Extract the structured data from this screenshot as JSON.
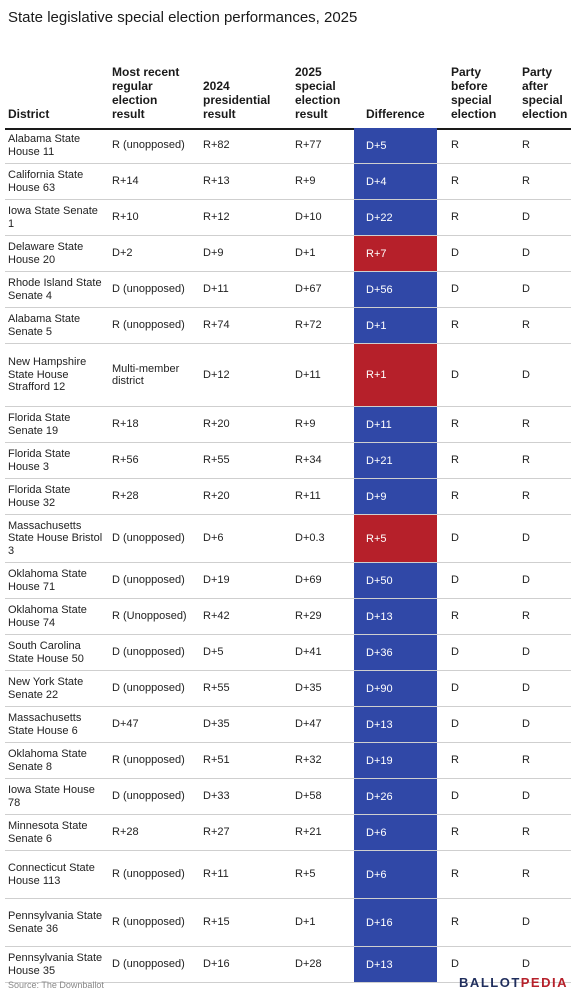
{
  "title": "State legislative special election performances, 2025",
  "headers": {
    "district": "District",
    "regular": "Most recent regular election result",
    "presidential": "2024 presidential result",
    "special": "2025 special election result",
    "difference": "Difference",
    "party_before": "Party before special election",
    "party_after": "Party after special election"
  },
  "colors": {
    "D": "#3048a7",
    "R": "#b6202a"
  },
  "rows": [
    {
      "district": "Alabama State House 11",
      "regular": "R (unopposed)",
      "presidential": "R+82",
      "special": "R+77",
      "difference": "D+5",
      "diff_party": "D",
      "before": "R",
      "after": "R"
    },
    {
      "district": "California State House 63",
      "regular": "R+14",
      "presidential": "R+13",
      "special": "R+9",
      "difference": "D+4",
      "diff_party": "D",
      "before": "R",
      "after": "R"
    },
    {
      "district": "Iowa State Senate 1",
      "regular": "R+10",
      "presidential": "R+12",
      "special": "D+10",
      "difference": "D+22",
      "diff_party": "D",
      "before": "R",
      "after": "D"
    },
    {
      "district": "Delaware State House 20",
      "regular": "D+2",
      "presidential": "D+9",
      "special": "D+1",
      "difference": "R+7",
      "diff_party": "R",
      "before": "D",
      "after": "D"
    },
    {
      "district": "Rhode Island State Senate 4",
      "regular": "D (unopposed)",
      "presidential": "D+11",
      "special": "D+67",
      "difference": "D+56",
      "diff_party": "D",
      "before": "D",
      "after": "D"
    },
    {
      "district": "Alabama State Senate 5",
      "regular": "R (unopposed)",
      "presidential": "R+74",
      "special": "R+72",
      "difference": "D+1",
      "diff_party": "D",
      "before": "R",
      "after": "R"
    },
    {
      "district": "New Hampshire State House Strafford 12",
      "regular": "Multi-member district",
      "presidential": "D+12",
      "special": "D+11",
      "difference": "R+1",
      "diff_party": "R",
      "before": "D",
      "after": "D"
    },
    {
      "district": "Florida State Senate 19",
      "regular": "R+18",
      "presidential": "R+20",
      "special": "R+9",
      "difference": "D+11",
      "diff_party": "D",
      "before": "R",
      "after": "R"
    },
    {
      "district": "Florida State House 3",
      "regular": "R+56",
      "presidential": "R+55",
      "special": "R+34",
      "difference": "D+21",
      "diff_party": "D",
      "before": "R",
      "after": "R"
    },
    {
      "district": "Florida State House 32",
      "regular": "R+28",
      "presidential": "R+20",
      "special": "R+11",
      "difference": "D+9",
      "diff_party": "D",
      "before": "R",
      "after": "R"
    },
    {
      "district": "Massachusetts State House Bristol 3",
      "regular": "D (unopposed)",
      "presidential": "D+6",
      "special": "D+0.3",
      "difference": "R+5",
      "diff_party": "R",
      "before": "D",
      "after": "D"
    },
    {
      "district": "Oklahoma State House 71",
      "regular": "D (unopposed)",
      "presidential": "D+19",
      "special": "D+69",
      "difference": "D+50",
      "diff_party": "D",
      "before": "D",
      "after": "D"
    },
    {
      "district": "Oklahoma State House 74",
      "regular": "R (Unopposed)",
      "presidential": "R+42",
      "special": "R+29",
      "difference": "D+13",
      "diff_party": "D",
      "before": "R",
      "after": "R"
    },
    {
      "district": "South Carolina State House 50",
      "regular": "D (unopposed)",
      "presidential": "D+5",
      "special": "D+41",
      "difference": "D+36",
      "diff_party": "D",
      "before": "D",
      "after": "D"
    },
    {
      "district": "New York State Senate 22",
      "regular": "D (unopposed)",
      "presidential": "R+55",
      "special": "D+35",
      "difference": "D+90",
      "diff_party": "D",
      "before": "D",
      "after": "D"
    },
    {
      "district": "Massachusetts State House 6",
      "regular": "D+47",
      "presidential": "D+35",
      "special": "D+47",
      "difference": "D+13",
      "diff_party": "D",
      "before": "D",
      "after": "D"
    },
    {
      "district": "Oklahoma State Senate 8",
      "regular": "R (unopposed)",
      "presidential": "R+51",
      "special": "R+32",
      "difference": "D+19",
      "diff_party": "D",
      "before": "R",
      "after": "R"
    },
    {
      "district": "Iowa State House 78",
      "regular": "D (unopposed)",
      "presidential": "D+33",
      "special": "D+58",
      "difference": "D+26",
      "diff_party": "D",
      "before": "D",
      "after": "D"
    },
    {
      "district": "Minnesota State Senate 6",
      "regular": "R+28",
      "presidential": "R+27",
      "special": "R+21",
      "difference": "D+6",
      "diff_party": "D",
      "before": "R",
      "after": "R"
    },
    {
      "district": "Connecticut State House 113",
      "regular": "R (unopposed)",
      "presidential": "R+11",
      "special": "R+5",
      "difference": "D+6",
      "diff_party": "D",
      "before": "R",
      "after": "R"
    },
    {
      "district": "Pennsylvania State Senate 36",
      "regular": "R (unopposed)",
      "presidential": "R+15",
      "special": "D+1",
      "difference": "D+16",
      "diff_party": "D",
      "before": "R",
      "after": "D"
    },
    {
      "district": "Pennsylvania State House 35",
      "regular": "D (unopposed)",
      "presidential": "D+16",
      "special": "D+28",
      "difference": "D+13",
      "diff_party": "D",
      "before": "D",
      "after": "D"
    }
  ],
  "source": "Source: The Downballot",
  "logo": {
    "part1": "BALLOT",
    "part2": "PEDIA"
  }
}
